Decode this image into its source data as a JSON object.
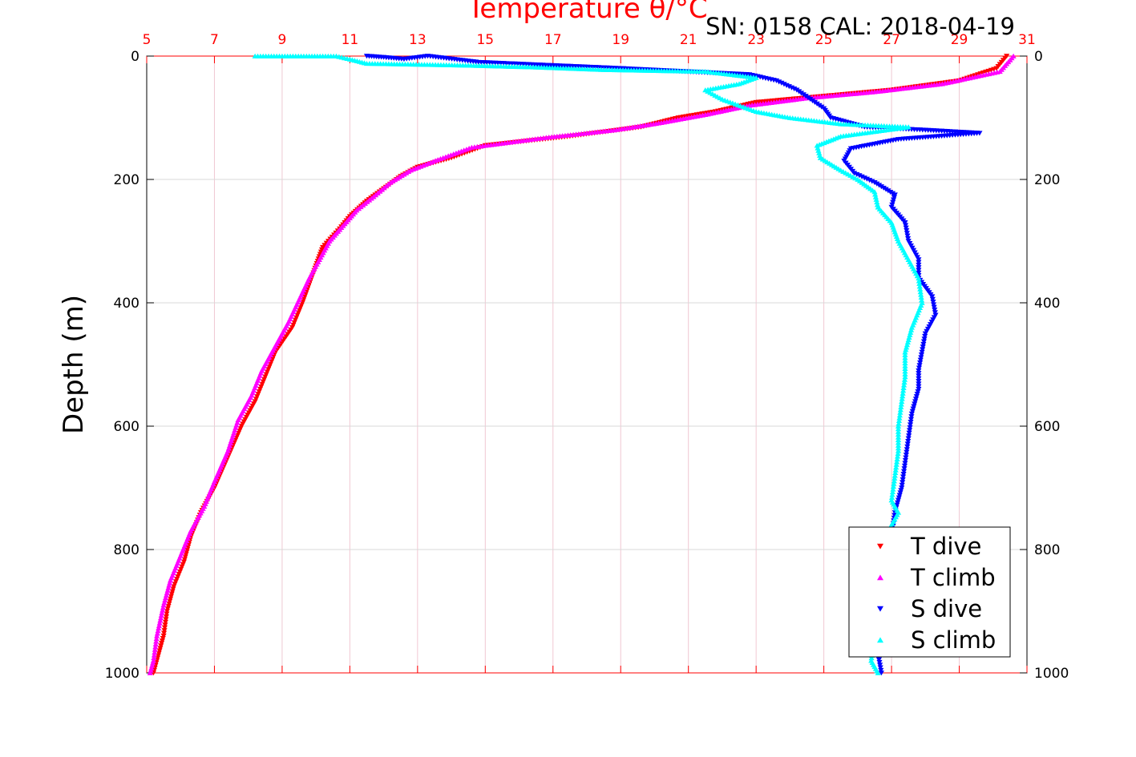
{
  "chart_data": {
    "type": "scatter",
    "title": "Temperature θ/°C",
    "annotation": "SN: 0158  CAL: 2018-04-19",
    "xlabel": "Temperature θ/°C",
    "ylabel": "Depth (m)",
    "xlim": [
      5,
      31
    ],
    "ylim": [
      0,
      1000
    ],
    "y_reversed": true,
    "x_ticks": [
      "5",
      "7",
      "9",
      "11",
      "13",
      "15",
      "17",
      "19",
      "21",
      "23",
      "25",
      "27",
      "29",
      "31"
    ],
    "y_ticks": [
      "0",
      "200",
      "400",
      "600",
      "800",
      "1000"
    ],
    "grid": true,
    "x_axis_position": "top",
    "legend_position": "bottom-right",
    "series": [
      {
        "name": "T dive",
        "marker": "triangle-down",
        "color": "#ff0000",
        "points": [
          [
            30.4,
            0
          ],
          [
            30.1,
            20
          ],
          [
            29.0,
            40
          ],
          [
            27.0,
            55
          ],
          [
            25.0,
            65
          ],
          [
            23.0,
            75
          ],
          [
            21.8,
            90
          ],
          [
            20.7,
            100
          ],
          [
            19.6,
            115
          ],
          [
            17.5,
            130
          ],
          [
            15.0,
            145
          ],
          [
            14.0,
            165
          ],
          [
            13.0,
            180
          ],
          [
            12.5,
            195
          ],
          [
            12.0,
            215
          ],
          [
            11.5,
            235
          ],
          [
            11.0,
            260
          ],
          [
            10.7,
            280
          ],
          [
            10.2,
            310
          ],
          [
            10.0,
            340
          ],
          [
            9.8,
            370
          ],
          [
            9.6,
            400
          ],
          [
            9.3,
            440
          ],
          [
            8.8,
            480
          ],
          [
            8.5,
            520
          ],
          [
            8.2,
            560
          ],
          [
            7.8,
            600
          ],
          [
            7.4,
            650
          ],
          [
            7.0,
            700
          ],
          [
            6.6,
            740
          ],
          [
            6.3,
            780
          ],
          [
            6.1,
            820
          ],
          [
            5.8,
            860
          ],
          [
            5.6,
            900
          ],
          [
            5.5,
            940
          ],
          [
            5.3,
            980
          ],
          [
            5.2,
            1000
          ]
        ]
      },
      {
        "name": "T climb",
        "marker": "triangle-up",
        "color": "#ff00ff",
        "points": [
          [
            30.6,
            0
          ],
          [
            30.2,
            25
          ],
          [
            28.5,
            45
          ],
          [
            26.5,
            58
          ],
          [
            24.5,
            68
          ],
          [
            22.8,
            80
          ],
          [
            21.5,
            95
          ],
          [
            20.2,
            108
          ],
          [
            18.8,
            120
          ],
          [
            16.8,
            132
          ],
          [
            14.6,
            148
          ],
          [
            13.6,
            168
          ],
          [
            12.8,
            185
          ],
          [
            12.2,
            205
          ],
          [
            11.7,
            228
          ],
          [
            11.2,
            250
          ],
          [
            10.8,
            275
          ],
          [
            10.4,
            300
          ],
          [
            10.1,
            330
          ],
          [
            9.8,
            360
          ],
          [
            9.5,
            395
          ],
          [
            9.2,
            430
          ],
          [
            8.8,
            470
          ],
          [
            8.4,
            510
          ],
          [
            8.1,
            550
          ],
          [
            7.7,
            590
          ],
          [
            7.4,
            640
          ],
          [
            7.0,
            690
          ],
          [
            6.7,
            730
          ],
          [
            6.3,
            770
          ],
          [
            6.0,
            810
          ],
          [
            5.7,
            850
          ],
          [
            5.5,
            890
          ],
          [
            5.3,
            940
          ],
          [
            5.2,
            980
          ],
          [
            5.1,
            1000
          ]
        ]
      },
      {
        "name": "S dive",
        "marker": "triangle-down",
        "color": "#0000ff",
        "points": [
          [
            11.5,
            0
          ],
          [
            12.0,
            2
          ],
          [
            12.6,
            5
          ],
          [
            13.3,
            0
          ],
          [
            14.8,
            10
          ],
          [
            19.0,
            20
          ],
          [
            22.8,
            30
          ],
          [
            23.6,
            40
          ],
          [
            24.2,
            55
          ],
          [
            24.6,
            70
          ],
          [
            25.0,
            85
          ],
          [
            25.2,
            100
          ],
          [
            26.2,
            115
          ],
          [
            28.0,
            120
          ],
          [
            29.6,
            125
          ],
          [
            27.2,
            135
          ],
          [
            25.8,
            150
          ],
          [
            25.6,
            170
          ],
          [
            25.9,
            190
          ],
          [
            26.5,
            205
          ],
          [
            27.1,
            225
          ],
          [
            27.0,
            245
          ],
          [
            27.4,
            270
          ],
          [
            27.5,
            300
          ],
          [
            27.8,
            330
          ],
          [
            27.8,
            360
          ],
          [
            28.2,
            390
          ],
          [
            28.3,
            420
          ],
          [
            28.0,
            450
          ],
          [
            27.9,
            480
          ],
          [
            27.8,
            510
          ],
          [
            27.8,
            540
          ],
          [
            27.6,
            580
          ],
          [
            27.5,
            620
          ],
          [
            27.4,
            660
          ],
          [
            27.3,
            700
          ],
          [
            27.1,
            740
          ],
          [
            27.0,
            780
          ],
          [
            26.8,
            830
          ],
          [
            26.8,
            880
          ],
          [
            26.6,
            930
          ],
          [
            26.6,
            970
          ],
          [
            26.7,
            1000
          ]
        ]
      },
      {
        "name": "S climb",
        "marker": "triangle-up",
        "color": "#00ffff",
        "points": [
          [
            8.2,
            0
          ],
          [
            9.8,
            0
          ],
          [
            10.6,
            0
          ],
          [
            11.0,
            5
          ],
          [
            11.5,
            12
          ],
          [
            14.5,
            15
          ],
          [
            16.5,
            18
          ],
          [
            18.5,
            22
          ],
          [
            21.5,
            25
          ],
          [
            23.0,
            35
          ],
          [
            22.5,
            45
          ],
          [
            21.5,
            55
          ],
          [
            22.0,
            70
          ],
          [
            23.0,
            90
          ],
          [
            24.0,
            100
          ],
          [
            25.5,
            110
          ],
          [
            27.5,
            115
          ],
          [
            25.5,
            130
          ],
          [
            24.8,
            145
          ],
          [
            24.9,
            165
          ],
          [
            25.5,
            185
          ],
          [
            26.0,
            200
          ],
          [
            26.5,
            220
          ],
          [
            26.6,
            245
          ],
          [
            27.0,
            270
          ],
          [
            27.2,
            300
          ],
          [
            27.5,
            330
          ],
          [
            27.8,
            360
          ],
          [
            27.9,
            400
          ],
          [
            27.6,
            440
          ],
          [
            27.4,
            480
          ],
          [
            27.4,
            520
          ],
          [
            27.3,
            560
          ],
          [
            27.2,
            600
          ],
          [
            27.2,
            640
          ],
          [
            27.1,
            680
          ],
          [
            27.0,
            720
          ],
          [
            27.2,
            740
          ],
          [
            26.8,
            780
          ],
          [
            26.6,
            830
          ],
          [
            26.5,
            880
          ],
          [
            26.5,
            930
          ],
          [
            26.4,
            980
          ],
          [
            26.6,
            1000
          ]
        ]
      }
    ]
  }
}
